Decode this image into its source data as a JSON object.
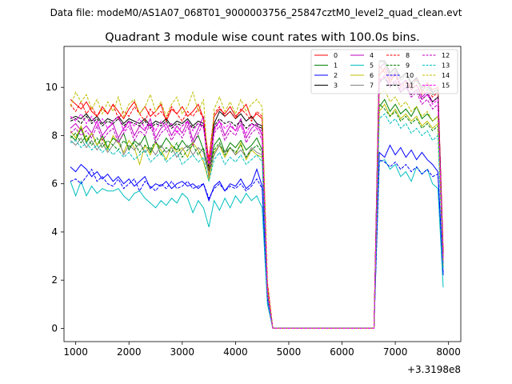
{
  "header": {
    "suptitle": "Data file: modeM0/AS1A07_068T01_9000003756_25847cztM0_level2_quad_clean.evt"
  },
  "chart_data": {
    "type": "line",
    "title": "Quadrant 3 module wise count rates with 100.0s bins.",
    "xlabel": "",
    "ylabel": "",
    "x_offset_label": "+3.3198e8",
    "xlim": [
      780,
      8230
    ],
    "ylim": [
      -0.55,
      11.7
    ],
    "xticks": [
      1000,
      2000,
      3000,
      4000,
      5000,
      6000,
      7000,
      8000
    ],
    "yticks": [
      0,
      2,
      4,
      6,
      8,
      10
    ],
    "grid": false,
    "legend": {
      "placement": "top-right",
      "columns": 4
    },
    "x": [
      900,
      1000,
      1100,
      1200,
      1300,
      1400,
      1500,
      1600,
      1700,
      1800,
      1900,
      2000,
      2100,
      2200,
      2300,
      2400,
      2500,
      2600,
      2700,
      2800,
      2900,
      3000,
      3100,
      3200,
      3300,
      3400,
      3500,
      3600,
      3700,
      3800,
      3900,
      4000,
      4100,
      4200,
      4300,
      4400,
      4500,
      4600,
      4700,
      4800,
      4900,
      5000,
      5100,
      5200,
      5300,
      5400,
      5500,
      5600,
      5700,
      5800,
      5900,
      6000,
      6100,
      6200,
      6300,
      6400,
      6500,
      6600,
      6700,
      6800,
      6900,
      7000,
      7100,
      7200,
      7300,
      7400,
      7500,
      7600,
      7700,
      7800,
      7900
    ],
    "series": [
      {
        "name": "0",
        "color": "#ff0000",
        "dash": "solid",
        "values": [
          9.5,
          9.3,
          9.1,
          9.4,
          9.0,
          8.8,
          9.2,
          8.9,
          9.3,
          9.0,
          8.7,
          9.1,
          9.4,
          8.9,
          9.2,
          8.8,
          9.0,
          9.3,
          8.6,
          9.1,
          8.9,
          9.2,
          8.8,
          9.0,
          9.3,
          8.7,
          6.9,
          8.8,
          9.1,
          8.9,
          9.2,
          8.8,
          9.0,
          9.3,
          8.7,
          8.9,
          8.7,
          1.8,
          0,
          0,
          0,
          0,
          0,
          0,
          0,
          0,
          0,
          0,
          0,
          0,
          0,
          0,
          0,
          0,
          0,
          0,
          0,
          0,
          10.5,
          10.8,
          10.2,
          10.6,
          10.1,
          10.3,
          10.0,
          10.4,
          9.8,
          10.2,
          9.9,
          10.0,
          3.2
        ]
      },
      {
        "name": "1",
        "color": "#008000",
        "dash": "solid",
        "values": [
          8.0,
          7.8,
          8.3,
          7.7,
          8.1,
          7.6,
          8.0,
          7.5,
          7.9,
          7.7,
          8.1,
          7.4,
          7.8,
          7.6,
          8.0,
          7.3,
          7.7,
          7.5,
          7.9,
          7.6,
          7.4,
          7.8,
          7.5,
          7.7,
          8.0,
          7.4,
          6.5,
          7.6,
          7.9,
          7.3,
          7.7,
          7.5,
          7.8,
          7.4,
          7.6,
          7.9,
          7.4,
          1.5,
          0,
          0,
          0,
          0,
          0,
          0,
          0,
          0,
          0,
          0,
          0,
          0,
          0,
          0,
          0,
          0,
          0,
          0,
          0,
          0,
          9.2,
          9.5,
          9.0,
          9.3,
          8.9,
          9.1,
          8.8,
          9.2,
          8.7,
          8.9,
          8.6,
          8.8,
          2.9
        ]
      },
      {
        "name": "2",
        "color": "#0000ff",
        "dash": "solid",
        "values": [
          6.7,
          6.5,
          6.8,
          6.6,
          6.3,
          6.5,
          6.2,
          6.4,
          6.1,
          6.3,
          6.0,
          6.2,
          5.9,
          6.1,
          6.3,
          5.8,
          6.0,
          5.9,
          6.1,
          5.8,
          6.0,
          6.1,
          5.9,
          6.0,
          5.8,
          6.0,
          5.3,
          5.9,
          6.1,
          5.7,
          6.0,
          5.9,
          6.2,
          5.8,
          6.0,
          6.6,
          5.9,
          1.2,
          0,
          0,
          0,
          0,
          0,
          0,
          0,
          0,
          0,
          0,
          0,
          0,
          0,
          0,
          0,
          0,
          0,
          0,
          0,
          0,
          7.3,
          7.1,
          7.6,
          7.2,
          7.5,
          7.1,
          7.4,
          7.0,
          7.3,
          7.0,
          6.8,
          6.5,
          2.2
        ]
      },
      {
        "name": "3",
        "color": "#000000",
        "dash": "solid",
        "values": [
          8.7,
          8.8,
          8.7,
          8.9,
          8.6,
          8.8,
          8.5,
          8.7,
          8.6,
          8.8,
          8.5,
          8.7,
          8.6,
          8.5,
          8.7,
          8.4,
          8.6,
          8.5,
          8.7,
          8.4,
          8.6,
          8.5,
          8.7,
          8.4,
          8.6,
          8.5,
          6.5,
          8.5,
          9.0,
          8.8,
          9.0,
          8.7,
          8.9,
          8.6,
          8.8,
          8.5,
          8.4,
          1.6,
          0,
          0,
          0,
          0,
          0,
          0,
          0,
          0,
          0,
          0,
          0,
          0,
          0,
          0,
          0,
          0,
          0,
          0,
          0,
          0,
          11.1,
          11.1,
          10.6,
          10.8,
          10.4,
          10.6,
          10.2,
          10.4,
          10.0,
          10.1,
          9.8,
          9.9,
          3.0
        ]
      },
      {
        "name": "4",
        "color": "#bf00bf",
        "dash": "solid",
        "values": [
          8.3,
          8.5,
          8.2,
          8.4,
          8.1,
          8.6,
          8.0,
          8.3,
          8.5,
          7.9,
          8.3,
          8.6,
          8.0,
          8.4,
          8.2,
          8.7,
          7.9,
          8.3,
          8.5,
          8.0,
          8.4,
          8.1,
          8.6,
          7.8,
          8.3,
          8.8,
          6.2,
          8.3,
          8.6,
          8.0,
          8.4,
          8.2,
          8.7,
          7.9,
          8.3,
          8.5,
          8.0,
          1.4,
          0,
          0,
          0,
          0,
          0,
          0,
          0,
          0,
          0,
          0,
          0,
          0,
          0,
          0,
          0,
          0,
          0,
          0,
          0,
          0,
          10.8,
          11.0,
          10.4,
          10.6,
          10.1,
          10.3,
          9.9,
          10.1,
          9.6,
          9.8,
          9.4,
          9.6,
          2.8
        ]
      },
      {
        "name": "5",
        "color": "#00bfbf",
        "dash": "solid",
        "values": [
          6.1,
          5.5,
          6.1,
          5.5,
          5.9,
          5.6,
          5.8,
          5.7,
          5.7,
          5.8,
          5.5,
          5.3,
          5.6,
          5.7,
          5.4,
          5.2,
          5.0,
          5.3,
          5.1,
          5.4,
          5.2,
          5.6,
          5.4,
          4.8,
          5.3,
          5.0,
          4.2,
          5.3,
          4.9,
          5.4,
          5.0,
          5.5,
          5.2,
          5.6,
          5.3,
          5.5,
          5.0,
          1.0,
          0,
          0,
          0,
          0,
          0,
          0,
          0,
          0,
          0,
          0,
          0,
          0,
          0,
          0,
          0,
          0,
          0,
          0,
          0,
          0,
          6.9,
          7.0,
          6.6,
          6.8,
          6.3,
          6.5,
          6.1,
          6.7,
          6.4,
          6.6,
          6.0,
          5.8,
          1.7
        ]
      },
      {
        "name": "6",
        "color": "#bfbf00",
        "dash": "solid",
        "values": [
          8.2,
          7.9,
          8.4,
          7.8,
          8.1,
          7.6,
          7.9,
          7.4,
          8.0,
          7.7,
          7.3,
          7.8,
          7.5,
          6.8,
          7.6,
          7.2,
          7.7,
          7.4,
          7.0,
          7.6,
          7.3,
          7.5,
          7.1,
          7.7,
          7.4,
          6.9,
          6.1,
          7.3,
          7.6,
          7.1,
          7.5,
          7.2,
          7.7,
          7.0,
          7.4,
          7.2,
          7.1,
          1.3,
          0,
          0,
          0,
          0,
          0,
          0,
          0,
          0,
          0,
          0,
          0,
          0,
          0,
          0,
          0,
          0,
          0,
          0,
          0,
          0,
          9.0,
          9.3,
          8.8,
          9.1,
          8.7,
          8.9,
          8.6,
          8.8,
          8.4,
          8.6,
          8.3,
          8.5,
          2.6
        ]
      },
      {
        "name": "7",
        "color": "#808080",
        "dash": "solid",
        "values": [
          7.8,
          7.6,
          7.9,
          7.5,
          7.8,
          7.4,
          7.7,
          7.3,
          7.6,
          7.9,
          7.2,
          7.6,
          7.4,
          7.7,
          7.3,
          7.5,
          7.2,
          7.6,
          7.3,
          7.5,
          7.1,
          7.4,
          7.6,
          7.2,
          7.5,
          7.3,
          6.4,
          7.2,
          7.6,
          7.3,
          7.5,
          7.2,
          7.4,
          7.1,
          7.5,
          7.3,
          7.2,
          1.4,
          0,
          0,
          0,
          0,
          0,
          0,
          0,
          0,
          0,
          0,
          0,
          0,
          0,
          0,
          0,
          0,
          0,
          0,
          0,
          0,
          11.1,
          11.0,
          10.5,
          10.7,
          10.3,
          10.5,
          10.1,
          10.3,
          9.9,
          10.0,
          9.7,
          9.8,
          2.7
        ]
      },
      {
        "name": "8",
        "color": "#ff0000",
        "dash": "dashed",
        "values": [
          9.3,
          9.0,
          9.4,
          8.9,
          9.2,
          8.8,
          9.1,
          8.9,
          9.3,
          8.7,
          9.0,
          8.8,
          9.2,
          8.9,
          8.6,
          9.1,
          8.8,
          9.0,
          8.7,
          9.2,
          8.9,
          8.6,
          9.0,
          8.8,
          9.1,
          8.7,
          7.0,
          8.9,
          9.2,
          8.8,
          9.0,
          8.7,
          9.1,
          8.9,
          8.6,
          9.0,
          8.8,
          1.9,
          0,
          0,
          0,
          0,
          0,
          0,
          0,
          0,
          0,
          0,
          0,
          0,
          0,
          0,
          0,
          0,
          0,
          0,
          0,
          0,
          10.9,
          10.6,
          10.3,
          10.5,
          10.0,
          10.2,
          9.9,
          10.1,
          9.7,
          9.9,
          9.6,
          9.8,
          3.1
        ]
      },
      {
        "name": "9",
        "color": "#008000",
        "dash": "dashed",
        "values": [
          7.9,
          8.1,
          7.7,
          8.0,
          7.6,
          7.9,
          7.5,
          7.8,
          7.6,
          7.4,
          7.8,
          7.5,
          7.7,
          7.3,
          7.6,
          7.4,
          7.8,
          7.2,
          7.5,
          7.3,
          7.7,
          7.1,
          7.4,
          7.6,
          7.2,
          7.5,
          6.4,
          7.4,
          7.7,
          7.2,
          7.5,
          7.3,
          7.6,
          7.1,
          7.4,
          7.6,
          7.3,
          1.5,
          0,
          0,
          0,
          0,
          0,
          0,
          0,
          0,
          0,
          0,
          0,
          0,
          0,
          0,
          0,
          0,
          0,
          0,
          0,
          0,
          9.3,
          9.1,
          8.8,
          9.0,
          8.6,
          8.8,
          8.5,
          8.7,
          8.3,
          8.5,
          8.2,
          8.4,
          2.7
        ]
      },
      {
        "name": "10",
        "color": "#0000ff",
        "dash": "dashed",
        "values": [
          6.1,
          6.2,
          6.0,
          6.3,
          6.6,
          6.1,
          6.3,
          6.0,
          5.9,
          6.2,
          5.8,
          6.0,
          6.2,
          5.7,
          6.1,
          5.9,
          5.7,
          6.0,
          5.8,
          6.1,
          5.8,
          5.9,
          6.1,
          5.8,
          5.9,
          6.0,
          5.4,
          5.8,
          6.0,
          5.7,
          5.9,
          5.8,
          6.0,
          5.7,
          5.9,
          6.2,
          5.8,
          1.2,
          0,
          0,
          0,
          0,
          0,
          0,
          0,
          0,
          0,
          0,
          0,
          0,
          0,
          0,
          0,
          0,
          0,
          0,
          0,
          0,
          7.0,
          6.9,
          6.7,
          6.9,
          6.6,
          6.8,
          6.5,
          6.7,
          6.4,
          6.6,
          6.3,
          6.4,
          2.3
        ]
      },
      {
        "name": "11",
        "color": "#000000",
        "dash": "dashed",
        "values": [
          8.6,
          8.7,
          8.5,
          8.8,
          8.5,
          8.7,
          8.4,
          8.6,
          8.5,
          8.7,
          8.4,
          8.6,
          8.5,
          8.4,
          8.6,
          8.3,
          8.5,
          8.4,
          8.6,
          8.3,
          8.5,
          8.4,
          8.6,
          8.3,
          8.5,
          8.4,
          6.6,
          8.4,
          8.7,
          8.5,
          8.6,
          8.4,
          8.6,
          8.3,
          8.5,
          8.4,
          8.3,
          1.6,
          0,
          0,
          0,
          0,
          0,
          0,
          0,
          0,
          0,
          0,
          0,
          0,
          0,
          0,
          0,
          0,
          0,
          0,
          0,
          0,
          10.2,
          10.4,
          10.0,
          10.2,
          9.8,
          10.0,
          9.7,
          9.9,
          9.5,
          9.7,
          9.4,
          9.6,
          2.9
        ]
      },
      {
        "name": "12",
        "color": "#bf00bf",
        "dash": "dashed",
        "values": [
          8.1,
          8.3,
          8.0,
          8.2,
          7.9,
          8.4,
          7.8,
          8.1,
          8.3,
          7.7,
          8.1,
          8.4,
          7.8,
          8.2,
          8.0,
          8.5,
          7.7,
          8.1,
          8.3,
          7.8,
          8.2,
          7.9,
          8.4,
          7.6,
          8.1,
          8.5,
          6.3,
          8.1,
          8.4,
          7.8,
          8.2,
          8.0,
          8.5,
          7.7,
          8.1,
          8.3,
          7.8,
          1.4,
          0,
          0,
          0,
          0,
          0,
          0,
          0,
          0,
          0,
          0,
          0,
          0,
          0,
          0,
          0,
          0,
          0,
          0,
          0,
          0,
          10.2,
          10.5,
          10.0,
          10.3,
          9.8,
          10.0,
          9.6,
          9.8,
          9.3,
          9.5,
          9.1,
          9.3,
          2.7
        ]
      },
      {
        "name": "13",
        "color": "#00bfbf",
        "dash": "dashed",
        "values": [
          7.7,
          7.8,
          7.5,
          7.7,
          7.4,
          7.6,
          7.3,
          7.5,
          7.2,
          7.4,
          7.1,
          7.3,
          7.0,
          7.2,
          7.4,
          6.9,
          7.1,
          7.3,
          6.9,
          7.1,
          7.3,
          6.8,
          7.0,
          7.2,
          6.9,
          7.1,
          6.1,
          7.0,
          7.3,
          6.8,
          7.1,
          6.9,
          7.2,
          6.8,
          7.0,
          7.2,
          6.9,
          1.3,
          0,
          0,
          0,
          0,
          0,
          0,
          0,
          0,
          0,
          0,
          0,
          0,
          0,
          0,
          0,
          0,
          0,
          0,
          0,
          0,
          8.7,
          8.9,
          8.5,
          8.7,
          8.3,
          8.5,
          8.1,
          8.3,
          8.0,
          8.2,
          7.8,
          8.0,
          2.5
        ]
      },
      {
        "name": "14",
        "color": "#bfbf00",
        "dash": "dashed",
        "values": [
          9.2,
          9.8,
          9.4,
          9.7,
          9.1,
          9.5,
          8.9,
          9.4,
          9.0,
          9.6,
          8.8,
          9.3,
          9.5,
          8.9,
          9.2,
          9.7,
          9.0,
          9.4,
          8.8,
          9.3,
          9.6,
          8.9,
          9.2,
          9.8,
          9.0,
          9.5,
          6.2,
          9.1,
          9.6,
          9.0,
          9.4,
          8.9,
          9.5,
          9.0,
          9.3,
          9.5,
          9.2,
          1.7,
          0,
          0,
          0,
          0,
          0,
          0,
          0,
          0,
          0,
          0,
          0,
          0,
          0,
          0,
          0,
          0,
          0,
          0,
          0,
          0,
          9.7,
          9.9,
          9.4,
          9.6,
          9.2,
          9.4,
          9.0,
          9.2,
          8.8,
          9.0,
          8.6,
          8.8,
          2.8
        ]
      },
      {
        "name": "15",
        "color": "#ff00ff",
        "dash": "dashed",
        "values": [
          8.8,
          8.6,
          8.9,
          8.5,
          8.8,
          8.4,
          8.7,
          8.3,
          8.6,
          8.8,
          8.2,
          8.6,
          8.4,
          8.7,
          8.3,
          8.5,
          8.2,
          8.6,
          8.3,
          8.5,
          8.1,
          8.4,
          8.6,
          8.2,
          8.5,
          8.3,
          6.8,
          8.2,
          8.6,
          8.3,
          8.5,
          8.2,
          8.4,
          8.1,
          8.5,
          8.3,
          8.2,
          1.5,
          0,
          0,
          0,
          0,
          0,
          0,
          0,
          0,
          0,
          0,
          0,
          0,
          0,
          0,
          0,
          0,
          0,
          0,
          0,
          0,
          10.3,
          10.5,
          10.1,
          10.3,
          9.9,
          10.1,
          9.7,
          9.9,
          9.5,
          9.7,
          9.3,
          9.5,
          2.8
        ]
      }
    ]
  }
}
